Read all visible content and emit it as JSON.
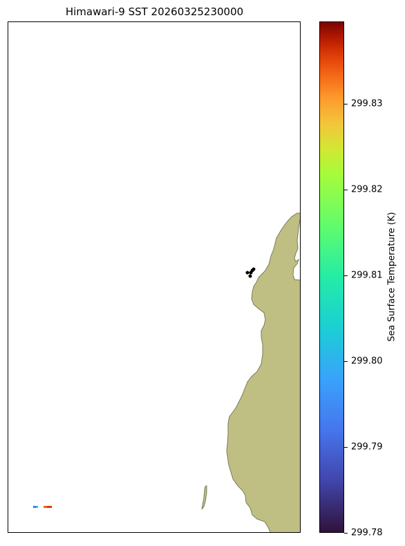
{
  "title": "Himawari-9 SST 20260325230000",
  "colorbar": {
    "label": "Sea Surface Temperature (K)",
    "min": 299.78,
    "max": 299.8396,
    "colormap": "turbo",
    "ticks": [
      "299.78",
      "299.79",
      "299.80",
      "299.81",
      "299.82",
      "299.83"
    ]
  },
  "map": {
    "land_color": "#bfbf84",
    "coast_color": "#7a7a58",
    "marker_color": "#000000",
    "sst_pixel_colors": [
      "#4675ed",
      "#1bcfd4",
      "#f36315",
      "#d93806"
    ]
  }
}
